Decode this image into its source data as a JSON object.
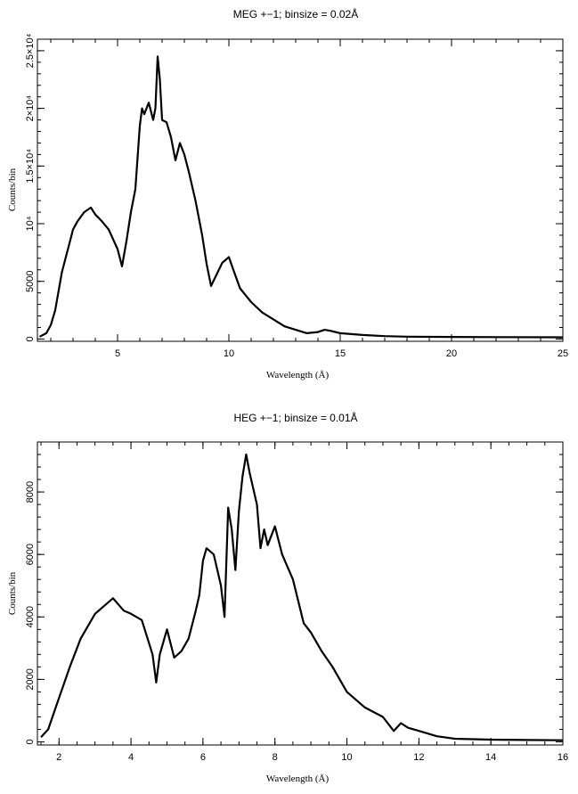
{
  "chart_data": [
    {
      "type": "line",
      "title": "MEG +−1; binsize = 0.02Å",
      "xlabel": "Wavelength (Å)",
      "ylabel": "Counts/bin",
      "xlim": [
        1.4,
        25
      ],
      "ylim": [
        -200,
        26000
      ],
      "xticks": [
        5,
        10,
        15,
        20,
        25
      ],
      "yticks": [
        0,
        5000,
        10000,
        15000,
        20000,
        25000
      ],
      "ytick_labels": [
        "0",
        "5000",
        "10⁴",
        "1.5×10⁴",
        "2×10⁴",
        "2.5×10⁴"
      ],
      "grid": false,
      "series": [
        {
          "x": [
            1.5,
            1.8,
            2.0,
            2.2,
            2.5,
            2.8,
            3.0,
            3.2,
            3.5,
            3.8,
            4.0,
            4.3,
            4.6,
            5.0,
            5.2,
            5.4,
            5.6,
            5.8,
            6.0,
            6.1,
            6.2,
            6.4,
            6.6,
            6.7,
            6.8,
            6.9,
            7.0,
            7.2,
            7.4,
            7.6,
            7.8,
            8.0,
            8.2,
            8.5,
            8.8,
            9.0,
            9.2,
            9.5,
            9.7,
            10.0,
            10.2,
            10.5,
            11.0,
            11.5,
            12.0,
            12.5,
            13.0,
            13.5,
            14.0,
            14.3,
            14.6,
            15.0,
            16.0,
            17.0,
            18.0,
            20.0,
            22.0,
            25.0
          ],
          "values": [
            200,
            500,
            1200,
            2500,
            5800,
            8000,
            9500,
            10200,
            11000,
            11400,
            10800,
            10200,
            9500,
            7800,
            6300,
            8500,
            11000,
            13000,
            18500,
            20000,
            19500,
            20500,
            19000,
            20000,
            24500,
            22500,
            19000,
            18800,
            17500,
            15500,
            17000,
            16000,
            14500,
            12000,
            9000,
            6500,
            4600,
            5800,
            6600,
            7100,
            6000,
            4400,
            3200,
            2300,
            1700,
            1100,
            800,
            500,
            600,
            800,
            700,
            500,
            350,
            250,
            200,
            180,
            160,
            150
          ]
        }
      ]
    },
    {
      "type": "line",
      "title": "HEG +−1; binsize = 0.01Å",
      "xlabel": "Wavelength (Å)",
      "ylabel": "Counts/bin",
      "xlim": [
        1.4,
        16
      ],
      "ylim": [
        -100,
        9600
      ],
      "xticks": [
        2,
        4,
        6,
        8,
        10,
        12,
        14,
        16
      ],
      "yticks": [
        0,
        2000,
        4000,
        6000,
        8000
      ],
      "ytick_labels": [
        "0",
        "2000",
        "4000",
        "6000",
        "8000"
      ],
      "grid": false,
      "series": [
        {
          "x": [
            1.5,
            1.7,
            2.0,
            2.3,
            2.6,
            3.0,
            3.3,
            3.5,
            3.8,
            4.0,
            4.3,
            4.6,
            4.7,
            4.8,
            5.0,
            5.2,
            5.4,
            5.6,
            5.8,
            5.9,
            6.0,
            6.1,
            6.3,
            6.5,
            6.6,
            6.7,
            6.8,
            6.9,
            7.0,
            7.1,
            7.2,
            7.3,
            7.5,
            7.6,
            7.7,
            7.8,
            8.0,
            8.2,
            8.5,
            8.8,
            9.0,
            9.3,
            9.6,
            10.0,
            10.5,
            11.0,
            11.3,
            11.5,
            11.7,
            12.0,
            12.5,
            13.0,
            14.0,
            15.0,
            16.0
          ],
          "values": [
            150,
            400,
            1400,
            2400,
            3300,
            4100,
            4400,
            4600,
            4200,
            4100,
            3900,
            2800,
            1900,
            2800,
            3600,
            2700,
            2900,
            3300,
            4200,
            4700,
            5800,
            6200,
            6000,
            5000,
            4000,
            7500,
            6800,
            5500,
            7400,
            8500,
            9200,
            8600,
            7600,
            6200,
            6800,
            6300,
            6900,
            6000,
            5200,
            3800,
            3500,
            2900,
            2400,
            1600,
            1100,
            800,
            350,
            600,
            450,
            350,
            180,
            100,
            70,
            60,
            50
          ]
        }
      ]
    }
  ]
}
